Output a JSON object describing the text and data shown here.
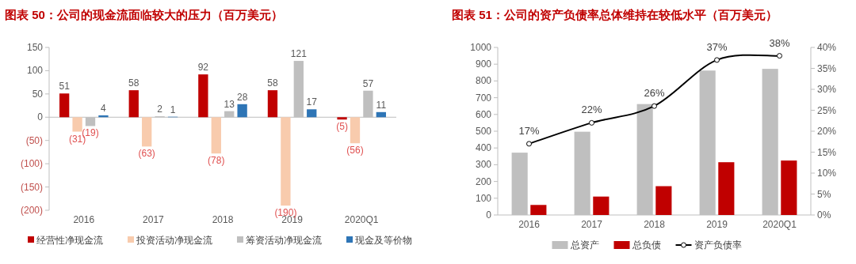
{
  "chart_data": [
    {
      "type": "bar",
      "title": "图表 50：公司的现金流面临较大的压力（百万美元）",
      "categories": [
        "2016",
        "2017",
        "2018",
        "2019",
        "2020Q1"
      ],
      "series": [
        {
          "name": "经营性净现金流",
          "color": "#c00000",
          "values": [
            51,
            58,
            92,
            58,
            -5
          ],
          "value_labels": [
            "51",
            "58",
            "92",
            "58",
            "(5)"
          ]
        },
        {
          "name": "投资活动净现金流",
          "color": "#f8cbad",
          "values": [
            -31,
            -63,
            -78,
            -190,
            -56
          ],
          "value_labels": [
            "(31)",
            "(63)",
            "(78)",
            "(190)",
            "(56)"
          ]
        },
        {
          "name": "筹资活动净现金流",
          "color": "#bfbfbf",
          "values": [
            -19,
            2,
            13,
            121,
            57
          ],
          "value_labels": [
            "(19)",
            "2",
            "13",
            "121",
            "57"
          ]
        },
        {
          "name": "现金及等价物",
          "color": "#2e75b6",
          "values": [
            4,
            1,
            28,
            17,
            11
          ],
          "value_labels": [
            "4",
            "1",
            "28",
            "17",
            "11"
          ]
        }
      ],
      "ylim": [
        -200,
        150
      ],
      "yticks": [
        {
          "value": -200,
          "label": "(200)"
        },
        {
          "value": -150,
          "label": "(150)"
        },
        {
          "value": -100,
          "label": "(100)"
        },
        {
          "value": -50,
          "label": "(50)"
        },
        0,
        50,
        100,
        150
      ],
      "legend": "bottom"
    },
    {
      "type": "bar",
      "title": "图表 51：公司的资产负债率总体维持在较低水平（百万美元）",
      "categories": [
        "2016",
        "2017",
        "2018",
        "2019",
        "2020Q1"
      ],
      "series": [
        {
          "name": "总资产",
          "color": "#bfbfbf",
          "values": [
            372,
            497,
            662,
            862,
            872
          ]
        },
        {
          "name": "总负债",
          "color": "#c00000",
          "values": [
            60,
            110,
            172,
            315,
            325
          ]
        },
        {
          "name": "资产负债率",
          "type": "line",
          "axis": "y2",
          "color": "#000000",
          "marker": "circle",
          "values": [
            17,
            22,
            26,
            37,
            38
          ],
          "value_labels": [
            "17%",
            "22%",
            "26%",
            "37%",
            "38%"
          ]
        }
      ],
      "ylim": [
        0,
        1000
      ],
      "yticks": [
        0,
        100,
        200,
        300,
        400,
        500,
        600,
        700,
        800,
        900,
        1000
      ],
      "y2lim": [
        0,
        40
      ],
      "y2ticks": [
        {
          "value": 0,
          "label": "0%"
        },
        {
          "value": 5,
          "label": "5%"
        },
        {
          "value": 10,
          "label": "10%"
        },
        {
          "value": 15,
          "label": "15%"
        },
        {
          "value": 20,
          "label": "20%"
        },
        {
          "value": 25,
          "label": "25%"
        },
        {
          "value": 30,
          "label": "30%"
        },
        {
          "value": 35,
          "label": "35%"
        },
        {
          "value": 40,
          "label": "40%"
        }
      ],
      "legend": "bottom"
    }
  ]
}
